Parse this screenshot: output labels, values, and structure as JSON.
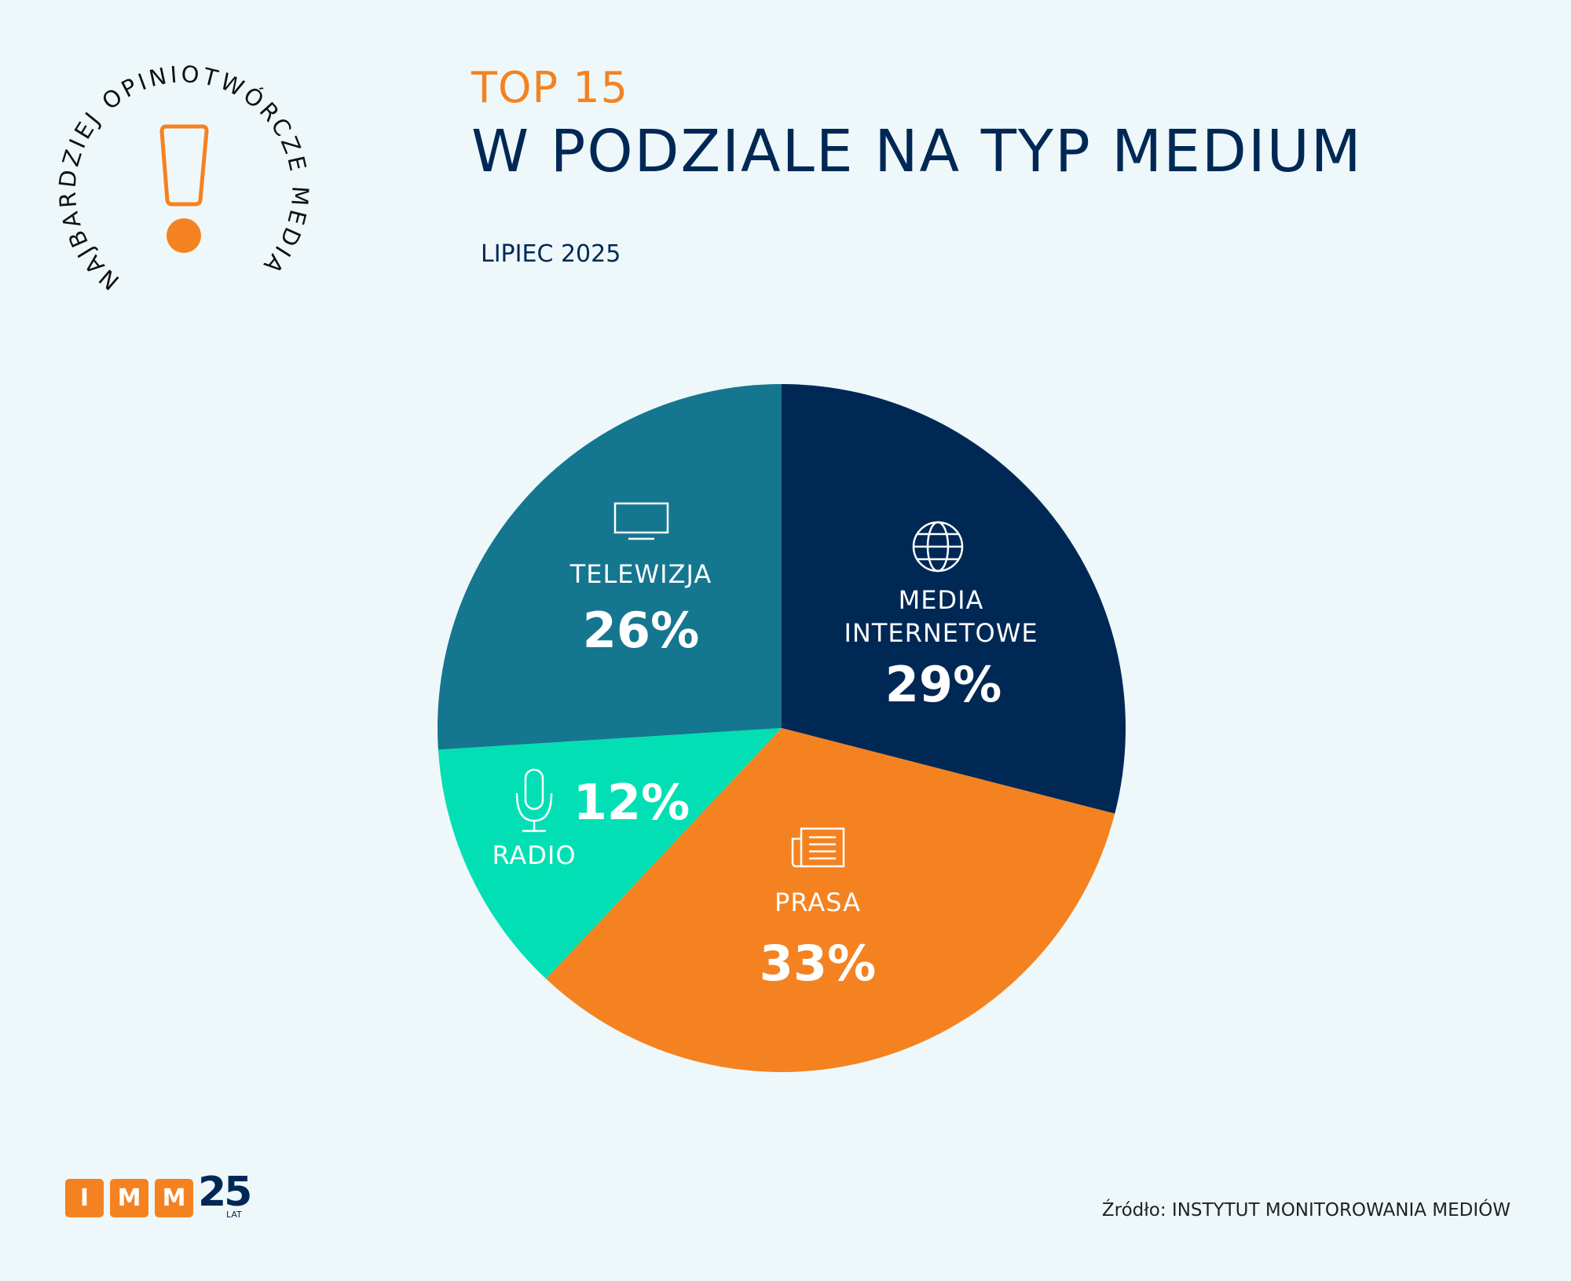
{
  "header": {
    "kicker": "TOP 15",
    "title": "W PODZIALE NA TYP MEDIUM",
    "period": "LIPIEC 2025"
  },
  "badge": {
    "text": "NAJBARDZIEJ OPINIOTWÓRCZE MEDIA"
  },
  "footer": {
    "logo_letters": [
      "I",
      "M",
      "M"
    ],
    "logo_years": "25",
    "logo_years_label": "LAT",
    "source": "Źródło: INSTYTUT MONITOROWANIA MEDIÓW"
  },
  "chart_data": {
    "type": "pie",
    "title": "W PODZIALE NA TYP MEDIUM",
    "start": "top, clockwise",
    "slices": [
      {
        "name": "MEDIA INTERNETOWE",
        "name_lines": [
          "MEDIA",
          "INTERNETOWE"
        ],
        "value": 29,
        "label": "29%",
        "color": "#002855",
        "icon": "globe-icon"
      },
      {
        "name": "PRASA",
        "name_lines": [
          "PRASA"
        ],
        "value": 33,
        "label": "33%",
        "color": "#f58220",
        "icon": "newspaper-icon"
      },
      {
        "name": "RADIO",
        "name_lines": [
          "RADIO"
        ],
        "value": 12,
        "label": "12%",
        "color": "#03dfb4",
        "icon": "microphone-icon"
      },
      {
        "name": "TELEWIZJA",
        "name_lines": [
          "TELEWIZJA"
        ],
        "value": 26,
        "label": "26%",
        "color": "#15768f",
        "icon": "tv-icon"
      }
    ]
  }
}
